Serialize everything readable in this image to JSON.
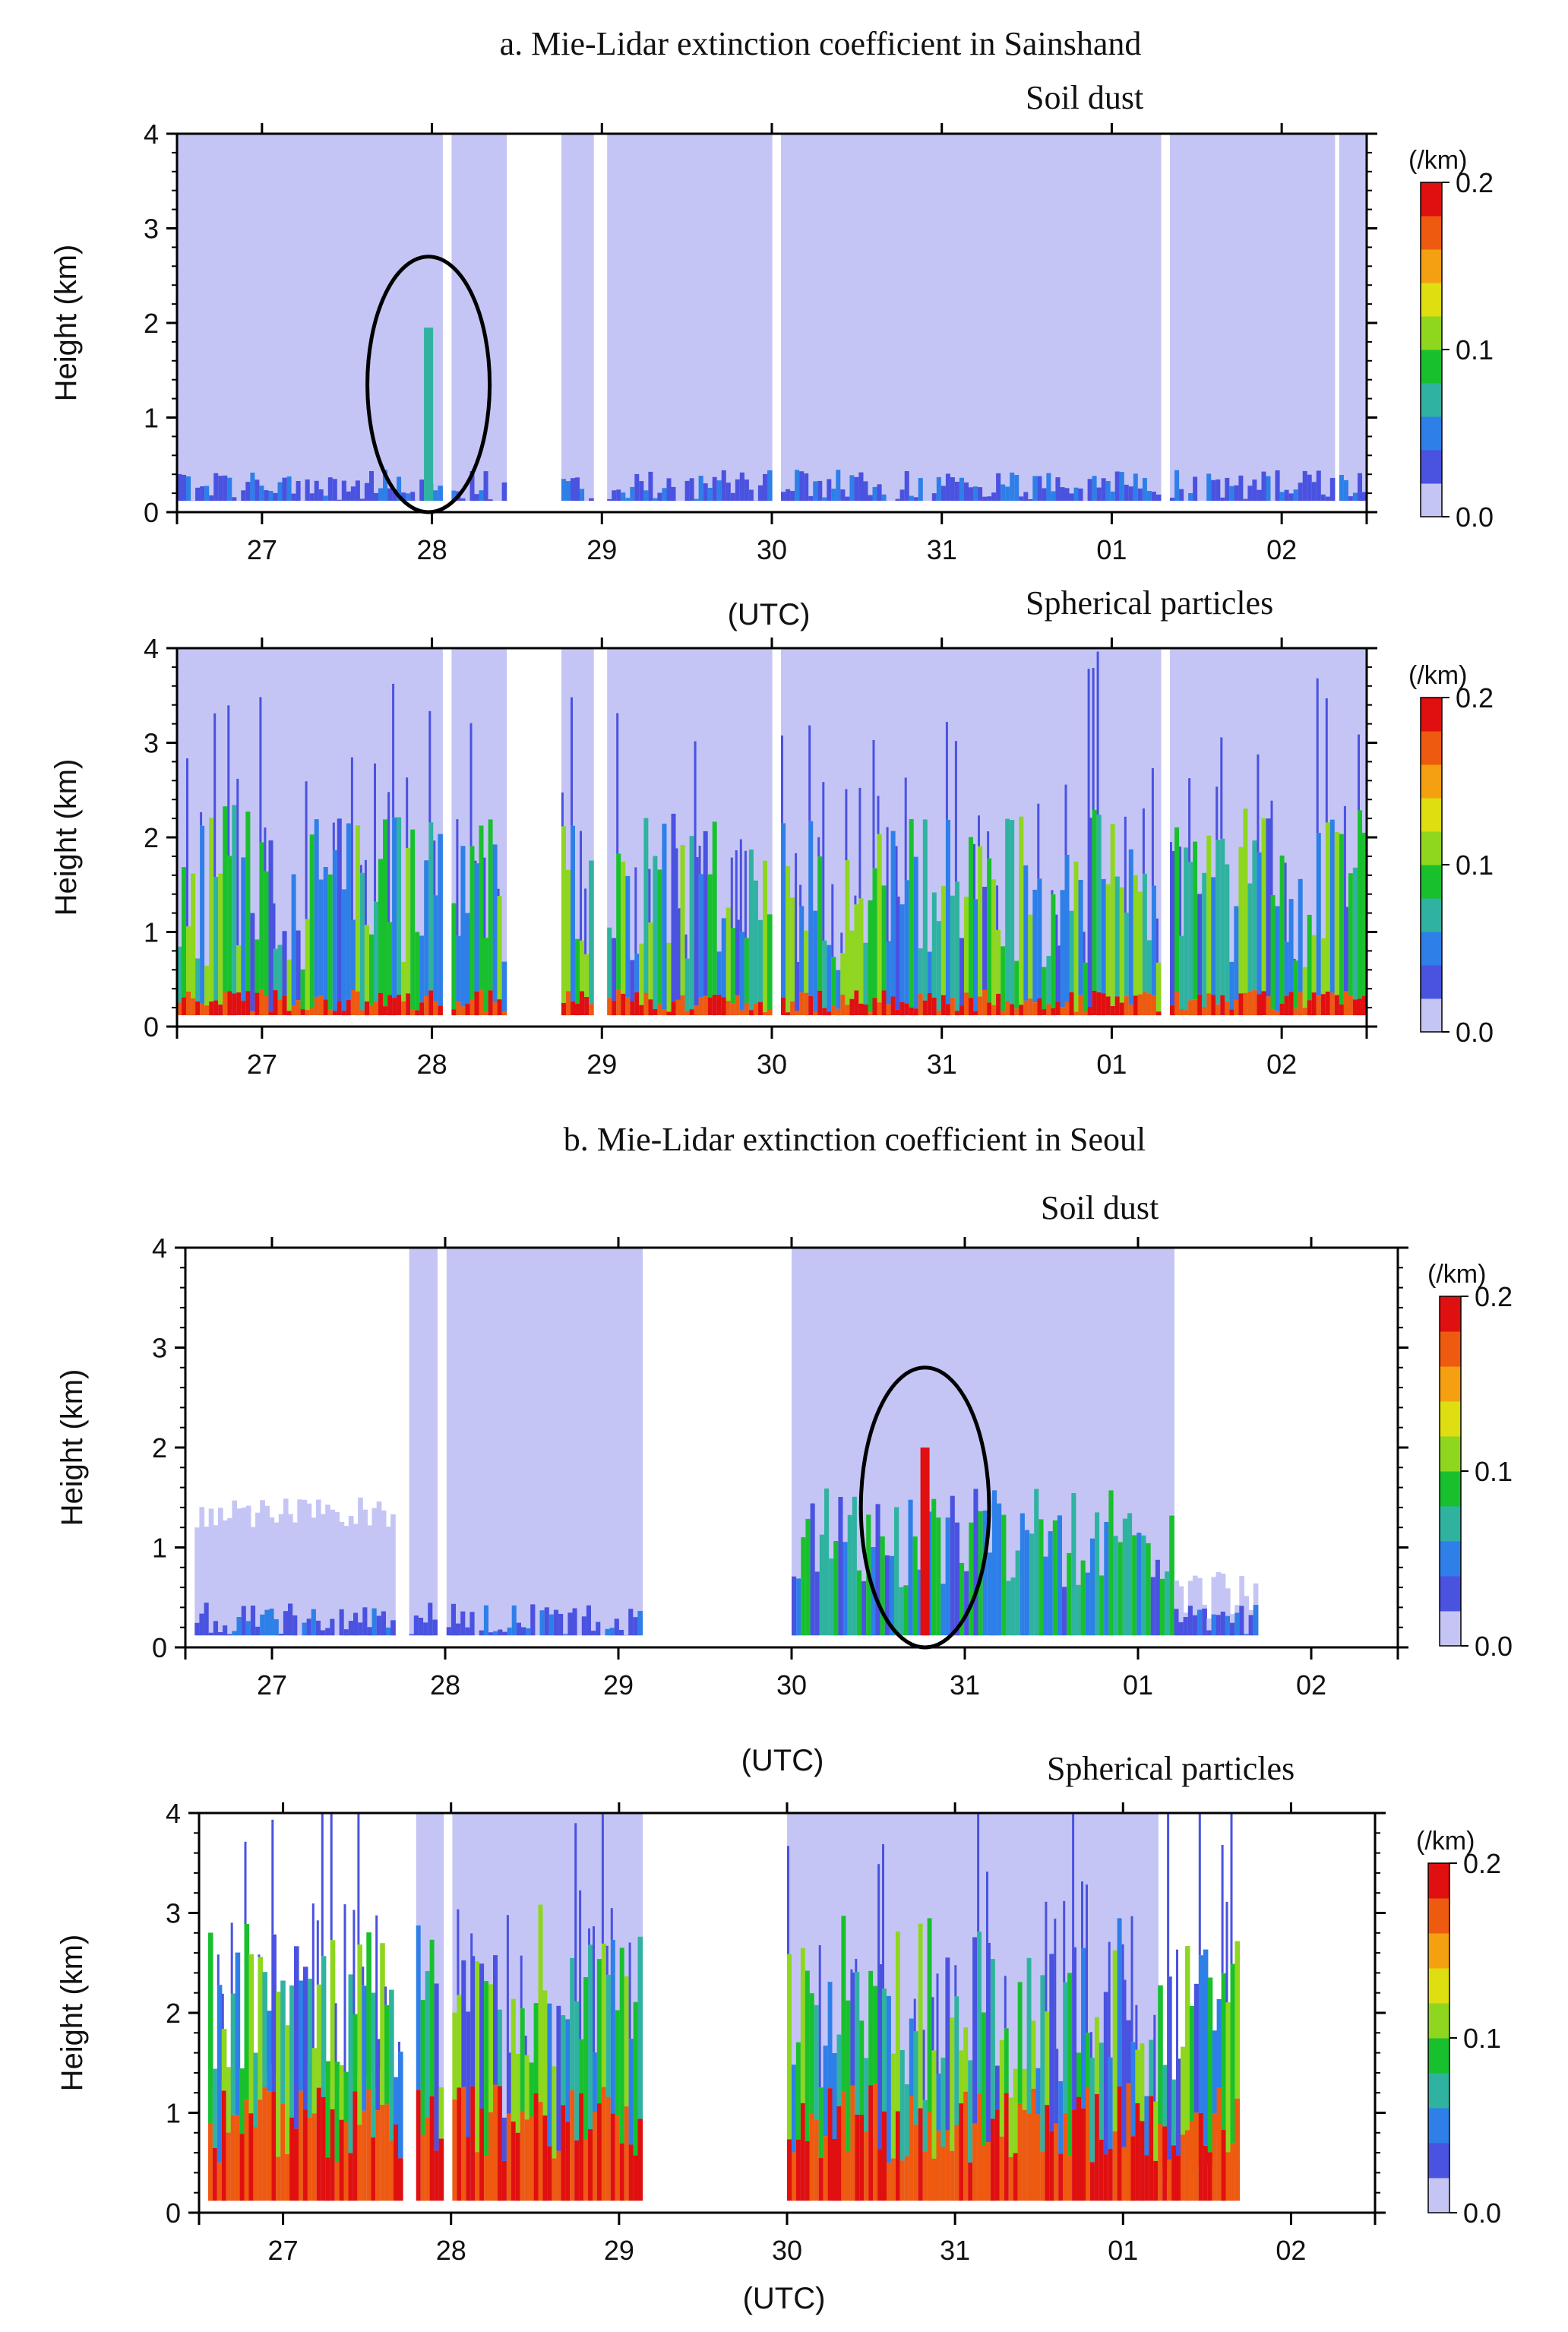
{
  "figure": {
    "section_a_title": "a. Mie-Lidar extinction coefficient in Sainshand",
    "section_b_title": "b. Mie-Lidar extinction coefficient in Seoul"
  },
  "colorbar": {
    "unit": "(/km)",
    "ticks": [
      "0.2",
      "0.1",
      "0.0"
    ],
    "range": [
      0.0,
      0.2
    ],
    "colors": [
      "#c5c5f5",
      "#4a52e0",
      "#2e7fe8",
      "#2fb3a0",
      "#19c02e",
      "#8fd61f",
      "#dede10",
      "#f5a010",
      "#ee5a10",
      "#e01010"
    ]
  },
  "chart_data": [
    {
      "type": "heatmap",
      "station": "Sainshand",
      "title": "Soil dust",
      "xlabel": "(UTC)",
      "ylabel": "Height (km)",
      "xticklabels": [
        "27",
        "28",
        "29",
        "30",
        "31",
        "01",
        "02"
      ],
      "yticklabels": [
        "0",
        "1",
        "2",
        "3",
        "4"
      ],
      "ylim": [
        0,
        4
      ],
      "xlim_days": [
        26.5,
        33.5
      ],
      "colorbar_range": [
        0.0,
        0.2
      ],
      "gaps_days": [
        [
          28.05,
          28.12
        ],
        [
          28.45,
          28.75
        ],
        [
          28.95,
          29.02
        ],
        [
          30.0,
          30.05
        ],
        [
          32.3,
          32.35
        ],
        [
          33.3,
          33.35
        ]
      ],
      "highlights": [
        {
          "center_day": 27.98,
          "height_km": 1.35,
          "value": 0.06,
          "note": "circled dust layer"
        }
      ],
      "annotation_circle": {
        "center_day": 27.98,
        "center_km": 1.35
      }
    },
    {
      "type": "heatmap",
      "station": "Sainshand",
      "title": "Spherical particles",
      "xlabel": "",
      "ylabel": "Height (km)",
      "xticklabels": [
        "27",
        "28",
        "29",
        "30",
        "31",
        "01",
        "02"
      ],
      "yticklabels": [
        "0",
        "1",
        "2",
        "3",
        "4"
      ],
      "ylim": [
        0,
        4
      ],
      "xlim_days": [
        26.5,
        33.5
      ],
      "colorbar_range": [
        0.0,
        0.2
      ],
      "gaps_days": [
        [
          28.05,
          28.12
        ],
        [
          28.45,
          28.75
        ],
        [
          28.95,
          29.02
        ],
        [
          30.0,
          30.05
        ],
        [
          32.3,
          32.35
        ]
      ],
      "surface_layer": {
        "top_km": 0.3,
        "value": 0.18
      }
    },
    {
      "type": "heatmap",
      "station": "Seoul",
      "title": "Soil dust",
      "xlabel": "(UTC)",
      "ylabel": "Height (km)",
      "xticklabels": [
        "27",
        "28",
        "29",
        "30",
        "31",
        "01",
        "02"
      ],
      "yticklabels": [
        "0",
        "1",
        "2",
        "3",
        "4"
      ],
      "ylim": [
        0,
        4
      ],
      "xlim_days": [
        26.5,
        33.5
      ],
      "colorbar_range": [
        0.0,
        0.2
      ],
      "gaps_days": [
        [
          26.5,
          26.55
        ],
        [
          27.7,
          27.8
        ],
        [
          27.95,
          28.0
        ],
        [
          29.15,
          30.0
        ],
        [
          32.7,
          33.5
        ]
      ],
      "highlights": [
        {
          "center_day": 30.77,
          "height_km": 1.4,
          "value": 0.2,
          "note": "circled dust column"
        }
      ],
      "annotation_circle": {
        "center_day": 30.77,
        "center_km": 1.4
      }
    },
    {
      "type": "heatmap",
      "station": "Seoul",
      "title": "Spherical particles",
      "xlabel": "(UTC)",
      "ylabel": "Height (km)",
      "xticklabels": [
        "27",
        "28",
        "29",
        "30",
        "31",
        "01",
        "02"
      ],
      "yticklabels": [
        "0",
        "1",
        "2",
        "3",
        "4"
      ],
      "ylim": [
        0,
        4
      ],
      "xlim_days": [
        26.5,
        33.5
      ],
      "colorbar_range": [
        0.0,
        0.2
      ],
      "gaps_days": [
        [
          26.5,
          26.55
        ],
        [
          27.7,
          27.8
        ],
        [
          27.95,
          28.0
        ],
        [
          29.15,
          30.0
        ],
        [
          32.7,
          33.5
        ]
      ],
      "surface_layer": {
        "top_km": 1.0,
        "value": 0.2
      }
    }
  ]
}
